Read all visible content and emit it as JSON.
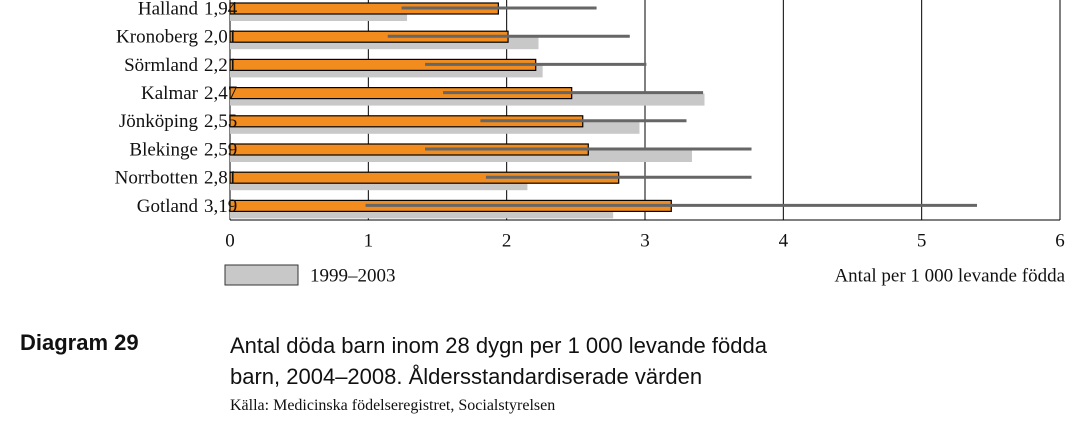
{
  "chart_data": {
    "type": "bar",
    "categories": [
      "Halland",
      "Kronoberg",
      "Sörmland",
      "Kalmar",
      "Jönköping",
      "Blekinge",
      "Norrbotten",
      "Gotland"
    ],
    "series": [
      {
        "color": "#f28c1e",
        "values": [
          1.94,
          2.01,
          2.21,
          2.47,
          2.55,
          2.59,
          2.81,
          3.19
        ],
        "value_labels": [
          "1,94",
          "2,01",
          "2,21",
          "2,47",
          "2,55",
          "2,59",
          "2,81",
          "3,19"
        ],
        "ci_low": [
          1.24,
          1.14,
          1.41,
          1.54,
          1.81,
          1.41,
          1.85,
          0.98
        ],
        "ci_high": [
          2.65,
          2.89,
          3.01,
          3.42,
          3.3,
          3.77,
          3.77,
          5.4
        ]
      },
      {
        "name": "1999–2003",
        "color": "#c8c8c8",
        "values": [
          1.28,
          2.23,
          2.26,
          3.43,
          2.96,
          3.34,
          2.15,
          2.77
        ]
      }
    ],
    "xlim": [
      0,
      6
    ],
    "xticks": [
      0,
      1,
      2,
      3,
      4,
      5,
      6
    ],
    "grid": true,
    "xlabel": "Antal per 1 000 levande födda",
    "caption": "Diagram 29",
    "title": "Antal döda barn inom 28 dygn per 1 000 levande födda barn, 2004–2008. Åldersstandardiserade värden",
    "source": "Källa: Medicinska födelseregistret, Socialstyrelsen"
  }
}
